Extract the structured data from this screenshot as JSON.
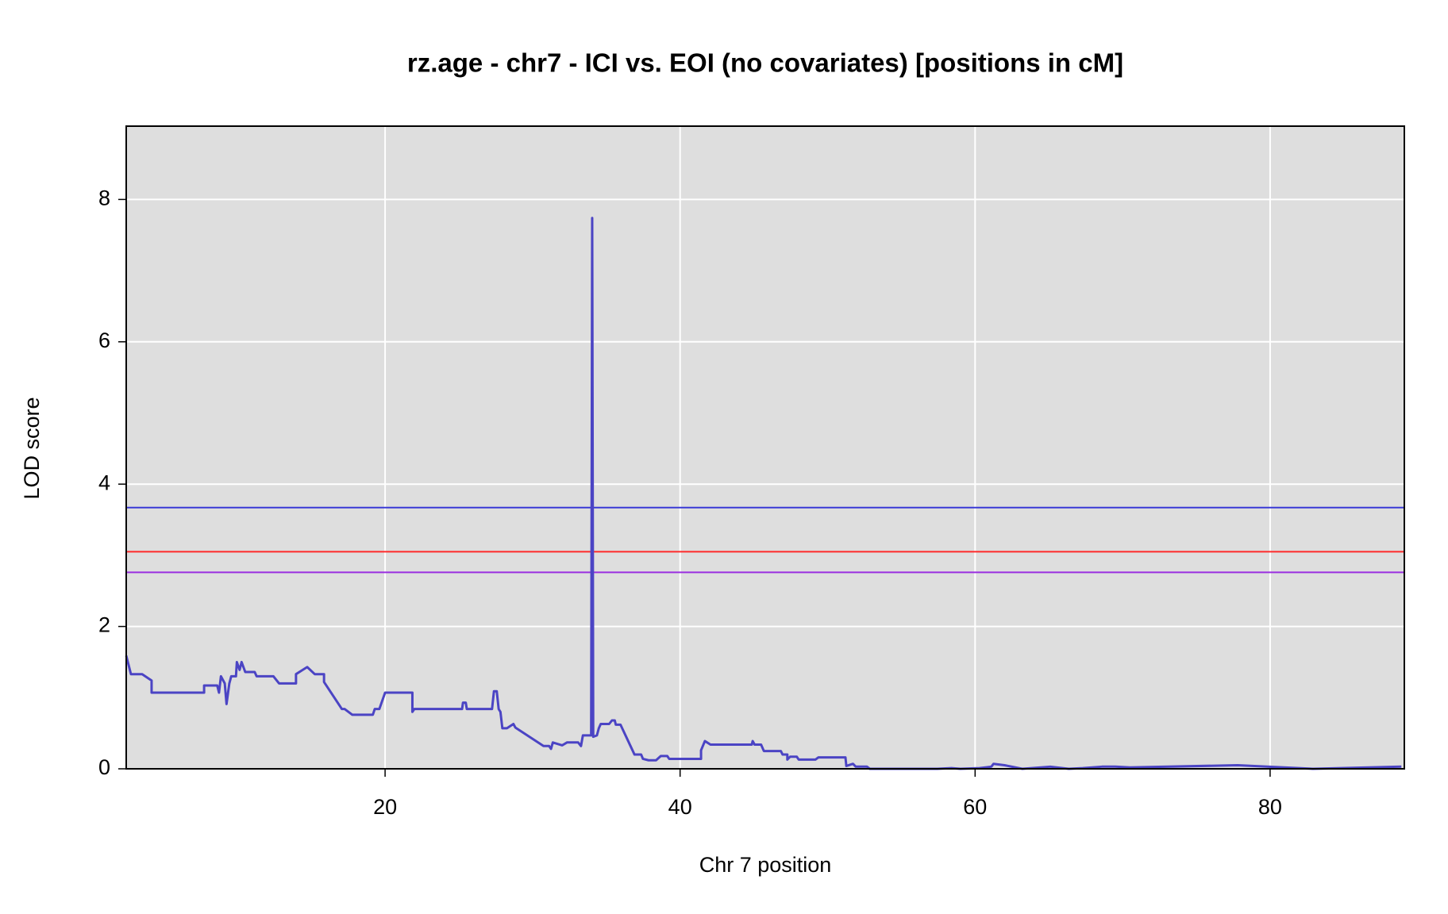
{
  "chart_data": {
    "type": "line",
    "title": "rz.age - chr7 - ICI vs. EOI (no covariates) [positions in cM]",
    "xlabel": "Chr 7 position",
    "ylabel": "LOD score",
    "xlim": [
      2.45,
      89.1
    ],
    "ylim": [
      0,
      9.03
    ],
    "xticks": [
      20,
      40,
      60,
      80
    ],
    "yticks": [
      0,
      2,
      4,
      6,
      8
    ],
    "grid": true,
    "color": "#4b44c4",
    "thresholds": [
      {
        "value": 3.67,
        "color": "#3a3ad6"
      },
      {
        "value": 3.05,
        "color": "#ff2a2a"
      },
      {
        "value": 2.76,
        "color": "#9a2ee0"
      }
    ],
    "x": [
      2.45,
      2.77,
      3.53,
      4.17,
      4.17,
      5.95,
      7.73,
      7.73,
      8.62,
      8.74,
      8.87,
      9.13,
      9.25,
      9.44,
      9.57,
      9.89,
      9.95,
      10.14,
      10.27,
      10.52,
      11.16,
      11.29,
      12.43,
      12.81,
      13.96,
      13.96,
      14.72,
      15.23,
      15.86,
      15.86,
      17.07,
      17.26,
      17.77,
      19.17,
      19.3,
      19.61,
      20.0,
      21.85,
      21.85,
      21.98,
      25.22,
      25.28,
      25.47,
      25.54,
      27.25,
      27.38,
      27.57,
      27.7,
      27.82,
      27.95,
      28.26,
      28.7,
      28.83,
      30.74,
      31.12,
      31.25,
      31.37,
      32.01,
      32.33,
      33.09,
      33.28,
      33.41,
      33.91,
      33.97,
      34.04,
      34.11,
      34.36,
      34.49,
      34.62,
      35.19,
      35.38,
      35.57,
      35.64,
      35.96,
      36.91,
      37.36,
      37.48,
      37.86,
      38.37,
      38.69,
      39.13,
      39.26,
      41.42,
      41.42,
      41.68,
      42.06,
      44.86,
      44.92,
      45.05,
      45.49,
      45.68,
      46.83,
      46.95,
      47.27,
      47.27,
      47.46,
      47.91,
      48.04,
      49.18,
      49.37,
      51.21,
      51.27,
      51.72,
      51.91,
      52.67,
      52.86,
      57.44,
      58.4,
      59.0,
      60.3,
      61.1,
      61.25,
      62.0,
      63.2,
      65.1,
      66.35,
      67.3,
      68.6,
      69.5,
      70.5,
      77.8,
      82.9,
      88.9
    ],
    "values": [
      1.59,
      1.33,
      1.33,
      1.24,
      1.07,
      1.07,
      1.07,
      1.17,
      1.17,
      1.07,
      1.3,
      1.2,
      0.91,
      1.2,
      1.3,
      1.3,
      1.5,
      1.39,
      1.5,
      1.36,
      1.36,
      1.3,
      1.3,
      1.2,
      1.2,
      1.33,
      1.43,
      1.33,
      1.33,
      1.22,
      0.84,
      0.84,
      0.76,
      0.76,
      0.84,
      0.84,
      1.07,
      1.07,
      0.8,
      0.84,
      0.84,
      0.93,
      0.93,
      0.84,
      0.84,
      1.09,
      1.09,
      0.84,
      0.8,
      0.57,
      0.57,
      0.63,
      0.58,
      0.32,
      0.32,
      0.28,
      0.37,
      0.33,
      0.37,
      0.37,
      0.32,
      0.47,
      0.47,
      0.47,
      7.74,
      0.45,
      0.47,
      0.57,
      0.63,
      0.63,
      0.68,
      0.68,
      0.62,
      0.62,
      0.2,
      0.2,
      0.14,
      0.12,
      0.12,
      0.18,
      0.18,
      0.14,
      0.14,
      0.26,
      0.39,
      0.34,
      0.34,
      0.39,
      0.34,
      0.34,
      0.25,
      0.25,
      0.2,
      0.2,
      0.13,
      0.17,
      0.17,
      0.13,
      0.13,
      0.16,
      0.16,
      0.04,
      0.07,
      0.03,
      0.03,
      0,
      0,
      0.01,
      0,
      0.01,
      0.03,
      0.07,
      0.05,
      0,
      0.03,
      0,
      0.01,
      0.03,
      0.03,
      0.02,
      0.05,
      0,
      0.03
    ]
  }
}
